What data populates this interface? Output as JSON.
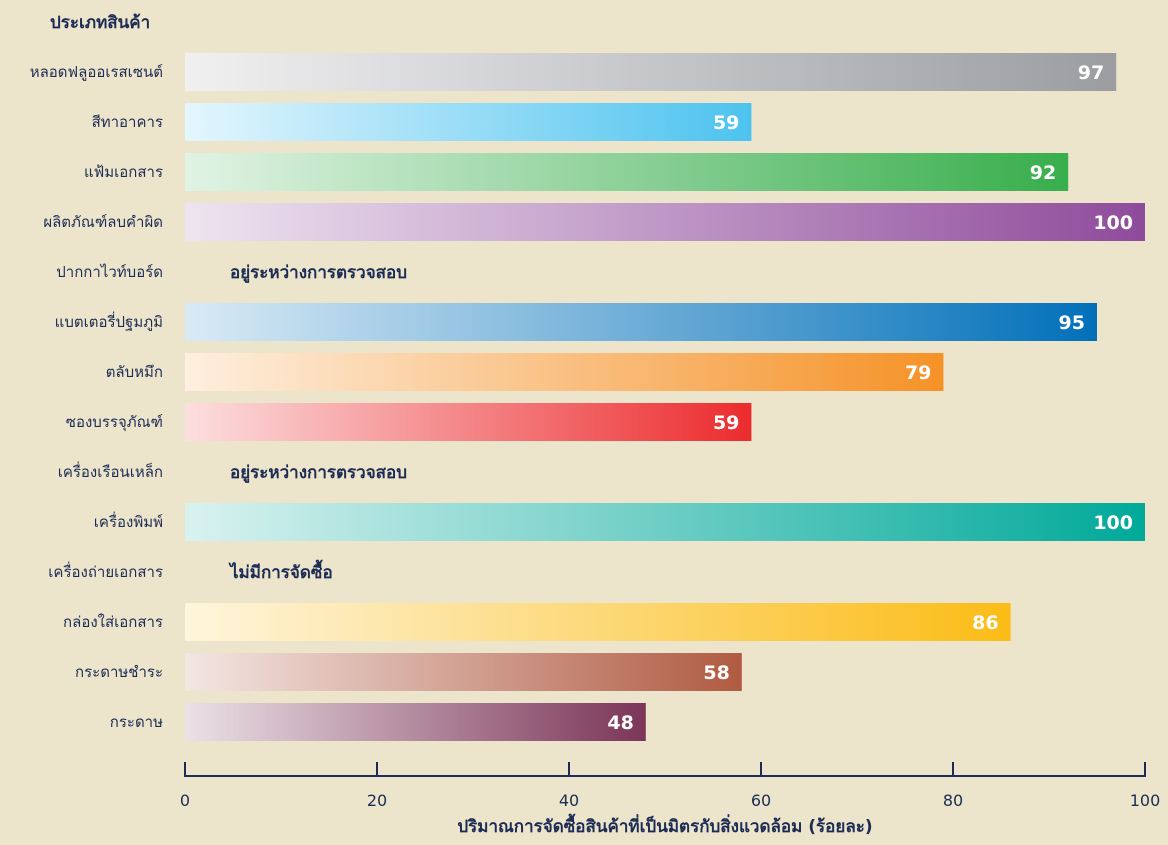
{
  "chart_data": {
    "type": "bar",
    "orientation": "horizontal",
    "category_axis_title": "ประเภทสินค้า",
    "xlabel": "ปริมาณการจัดซื้อสินค้าที่เป็นมิตรกับสิ่งแวดล้อม (ร้อยละ)",
    "xlim": [
      0,
      100
    ],
    "xticks": [
      0,
      20,
      40,
      60,
      80,
      100
    ],
    "grid": false,
    "categories": [
      "หลอดฟลูออเรสเซนต์",
      "สีทาอาคาร",
      "แฟ้มเอกสาร",
      "ผลิตภัณฑ์ลบคำผิด",
      "ปากกาไวท์บอร์ด",
      "แบตเตอรี่ปฐมภูมิ",
      "ตลับหมึก",
      "ซองบรรจุภัณฑ์",
      "เครื่องเรือนเหล็ก",
      "เครื่องพิมพ์",
      "เครื่องถ่ายเอกสาร",
      "กล่องใส่เอกสาร",
      "กระดาษชำระ",
      "กระดาษ"
    ],
    "bars": [
      {
        "label": "97",
        "value": 97,
        "color": "#9b9da0",
        "status": ""
      },
      {
        "label": "59",
        "value": 59,
        "color": "#4cc3ef",
        "status": ""
      },
      {
        "label": "92",
        "value": 92,
        "color": "#38ae4c",
        "status": ""
      },
      {
        "label": "100",
        "value": 100,
        "color": "#8f4b9b",
        "status": ""
      },
      {
        "label": "",
        "value": null,
        "color": "",
        "status": "อยู่ระหว่างการตรวจสอบ"
      },
      {
        "label": "95",
        "value": 95,
        "color": "#0170b9",
        "status": ""
      },
      {
        "label": "79",
        "value": 79,
        "color": "#f59227",
        "status": ""
      },
      {
        "label": "59",
        "value": 59,
        "color": "#ec2b2d",
        "status": ""
      },
      {
        "label": "",
        "value": null,
        "color": "",
        "status": "อยู่ระหว่างการตรวจสอบ"
      },
      {
        "label": "100",
        "value": 100,
        "color": "#00a999",
        "status": ""
      },
      {
        "label": "",
        "value": null,
        "color": "",
        "status": "ไม่มีการจัดซื้อ"
      },
      {
        "label": "86",
        "value": 86,
        "color": "#fbbc16",
        "status": ""
      },
      {
        "label": "58",
        "value": 58,
        "color": "#b05b41",
        "status": ""
      },
      {
        "label": "48",
        "value": 48,
        "color": "#7b3558",
        "status": ""
      }
    ]
  }
}
